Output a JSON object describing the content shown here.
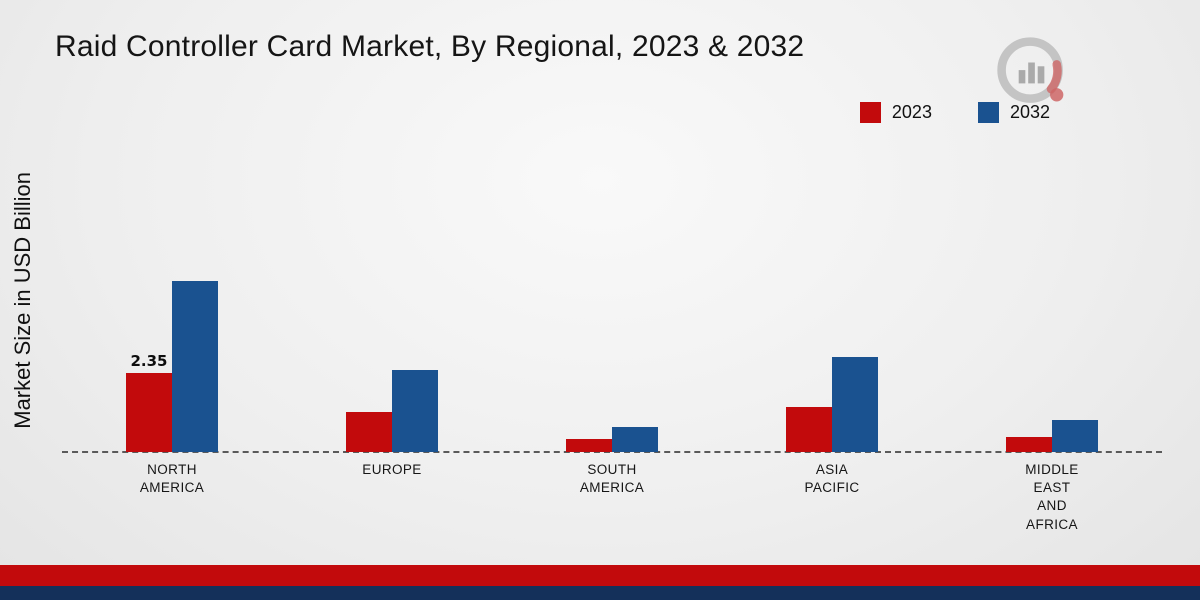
{
  "page": {
    "title": "Raid Controller Card Market, By Regional, 2023 & 2032",
    "ylabel": "Market Size in USD Billion"
  },
  "legend": [
    {
      "label": "2023",
      "color": "#c20a0c"
    },
    {
      "label": "2032",
      "color": "#1a5290"
    }
  ],
  "chart_data": {
    "type": "bar",
    "title": "Raid Controller Card Market, By Regional, 2023 & 2032",
    "ylabel": "Market Size in USD Billion",
    "categories": [
      "NORTH AMERICA",
      "EUROPE",
      "SOUTH AMERICA",
      "ASIA PACIFIC",
      "MIDDLE EAST AND AFRICA"
    ],
    "category_lines": [
      [
        "NORTH",
        "AMERICA"
      ],
      [
        "EUROPE"
      ],
      [
        "SOUTH",
        "AMERICA"
      ],
      [
        "ASIA",
        "PACIFIC"
      ],
      [
        "MIDDLE",
        "EAST",
        "AND",
        "AFRICA"
      ]
    ],
    "series": [
      {
        "name": "2023",
        "color": "#c20a0c",
        "values": [
          2.35,
          1.2,
          0.4,
          1.35,
          0.45
        ]
      },
      {
        "name": "2032",
        "color": "#1a5290",
        "values": [
          5.1,
          2.45,
          0.75,
          2.85,
          0.95
        ]
      }
    ],
    "data_labels": [
      [
        "2.35",
        "",
        "",
        "",
        ""
      ],
      [
        "",
        "",
        "",
        "",
        ""
      ]
    ],
    "ylim": [
      0,
      6
    ],
    "grid": false,
    "baseline_style": "dashed",
    "legend_position": "top-right"
  },
  "footer": {
    "red_strip_color": "#c20a0c",
    "blue_strip_color": "#14305a"
  },
  "logo": {
    "name": "market-research-brand-logo"
  }
}
